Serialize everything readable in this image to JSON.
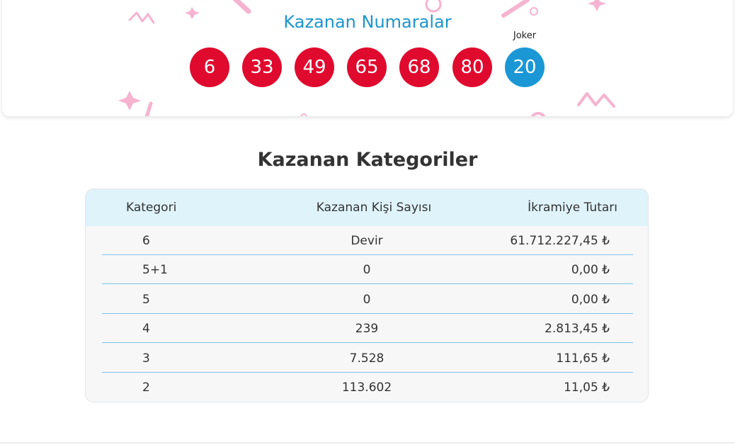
{
  "winning_numbers": {
    "title": "Kazanan Numaralar",
    "balls": [
      "6",
      "33",
      "49",
      "65",
      "68",
      "80"
    ],
    "joker_label": "Joker",
    "joker_ball": "20",
    "colors": {
      "ball": "#e00a2e",
      "joker": "#1b97d6",
      "title": "#1b95cf",
      "confetti": "#f6b3cf"
    }
  },
  "categories": {
    "title": "Kazanan Kategoriler",
    "headers": [
      "Kategori",
      "Kazanan Kişi Sayısı",
      "İkramiye Tutarı"
    ],
    "rows": [
      {
        "category": "6",
        "winners": "Devir",
        "prize": "61.712.227,45 ₺"
      },
      {
        "category": "5+1",
        "winners": "0",
        "prize": "0,00 ₺"
      },
      {
        "category": "5",
        "winners": "0",
        "prize": "0,00 ₺"
      },
      {
        "category": "4",
        "winners": "239",
        "prize": "2.813,45 ₺"
      },
      {
        "category": "3",
        "winners": "7.528",
        "prize": "111,65 ₺"
      },
      {
        "category": "2",
        "winners": "113.602",
        "prize": "11,05 ₺"
      }
    ],
    "colors": {
      "header_bg": "#dff3fb",
      "separator": "#7fc3e6"
    }
  }
}
